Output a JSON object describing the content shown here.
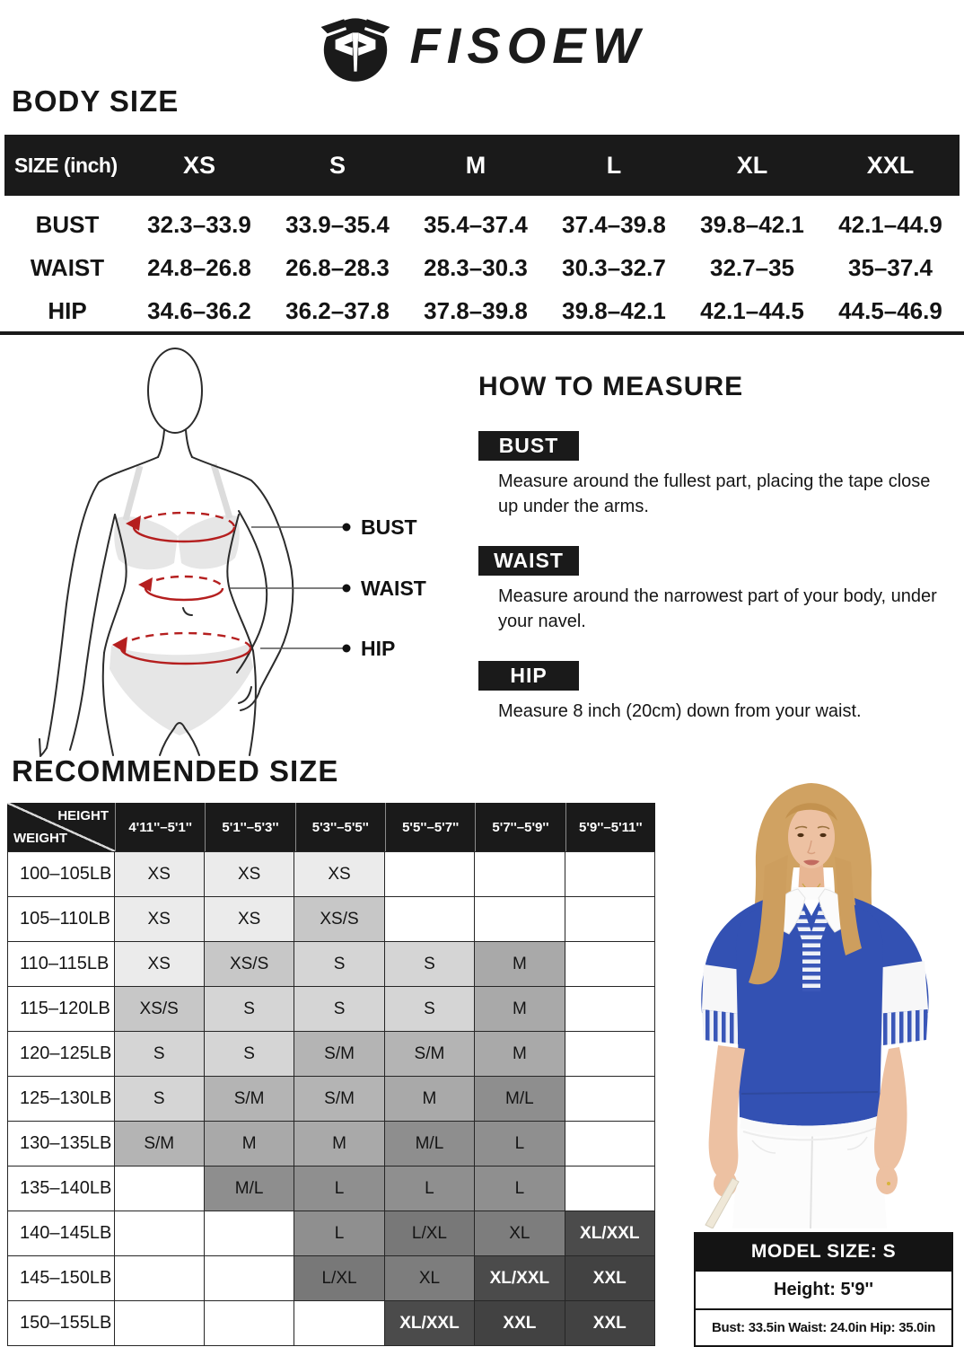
{
  "brand": {
    "name": "FISOEW",
    "icon": "fisoew-monogram-icon"
  },
  "colors": {
    "ink": "#1a1a1a",
    "red": "#b51f1f",
    "blue": "#3351b3",
    "blue_stripe": "#3a57b8"
  },
  "body_size": {
    "heading": "BODY SIZE",
    "unit_label": "SIZE (inch)",
    "columns": [
      "XS",
      "S",
      "M",
      "L",
      "XL",
      "XXL"
    ],
    "rows": [
      {
        "label": "BUST",
        "values": [
          "32.3–33.9",
          "33.9–35.4",
          "35.4–37.4",
          "37.4–39.8",
          "39.8–42.1",
          "42.1–44.9"
        ]
      },
      {
        "label": "WAIST",
        "values": [
          "24.8–26.8",
          "26.8–28.3",
          "28.3–30.3",
          "30.3–32.7",
          "32.7–35",
          "35–37.4"
        ]
      },
      {
        "label": "HIP",
        "values": [
          "34.6–36.2",
          "36.2–37.8",
          "37.8–39.8",
          "39.8–42.1",
          "42.1–44.5",
          "44.5–46.9"
        ]
      }
    ]
  },
  "figure": {
    "labels": [
      "BUST",
      "WAIST",
      "HIP"
    ]
  },
  "how_to_measure": {
    "heading": "HOW TO MEASURE",
    "items": [
      {
        "label": "BUST",
        "text": "Measure around the fullest part, placing the tape close up under the arms."
      },
      {
        "label": "WAIST",
        "text": "Measure around the narrowest part of your body, under your navel."
      },
      {
        "label": "HIP",
        "text": "Measure 8 inch (20cm) down from your waist."
      }
    ]
  },
  "recommended": {
    "heading": "RECOMMENDED SIZE",
    "corner": {
      "top": "HEIGHT",
      "bottom": "WEIGHT"
    },
    "height_columns": [
      "4'11''–5'1''",
      "5'1''–5'3''",
      "5'3''–5'5''",
      "5'5''–5'7''",
      "5'7''–5'9''",
      "5'9''–5'11''"
    ],
    "rows": [
      {
        "weight": "100–105LB",
        "cells": [
          "XS",
          "XS",
          "XS",
          "",
          "",
          ""
        ]
      },
      {
        "weight": "105–110LB",
        "cells": [
          "XS",
          "XS",
          "XS/S",
          "",
          "",
          ""
        ]
      },
      {
        "weight": "110–115LB",
        "cells": [
          "XS",
          "XS/S",
          "S",
          "S",
          "M",
          ""
        ]
      },
      {
        "weight": "115–120LB",
        "cells": [
          "XS/S",
          "S",
          "S",
          "S",
          "M",
          ""
        ]
      },
      {
        "weight": "120–125LB",
        "cells": [
          "S",
          "S",
          "S/M",
          "S/M",
          "M",
          ""
        ]
      },
      {
        "weight": "125–130LB",
        "cells": [
          "S",
          "S/M",
          "S/M",
          "M",
          "M/L",
          ""
        ]
      },
      {
        "weight": "130–135LB",
        "cells": [
          "S/M",
          "M",
          "M",
          "M/L",
          "L",
          ""
        ]
      },
      {
        "weight": "135–140LB",
        "cells": [
          "",
          "M/L",
          "L",
          "L",
          "L",
          ""
        ]
      },
      {
        "weight": "140–145LB",
        "cells": [
          "",
          "",
          "L",
          "L/XL",
          "XL",
          "XL/XXL"
        ]
      },
      {
        "weight": "145–150LB",
        "cells": [
          "",
          "",
          "L/XL",
          "XL",
          "XL/XXL",
          "XXL"
        ]
      },
      {
        "weight": "150–155LB",
        "cells": [
          "",
          "",
          "",
          "XL/XXL",
          "XXL",
          "XXL"
        ]
      }
    ],
    "cell_tones": {
      "XS": "#ebebeb",
      "XS/S": "#c7c7c7",
      "S": "#d5d5d5",
      "S/M": "#b4b4b4",
      "M": "#a9a9a9",
      "M/L": "#8e8e8e",
      "L": "#8f8f8f",
      "L/XL": "#787878",
      "XL": "#7d7d7d",
      "XL/XXL": "#4b4b4b",
      "XXL": "#424242"
    },
    "light_text_labels": [
      "XL/XXL",
      "XXL"
    ]
  },
  "model_info": {
    "header": "MODEL SIZE: S",
    "height": "Height: 5'9''",
    "measurements": "Bust: 33.5in Waist: 24.0in Hip: 35.0in"
  }
}
